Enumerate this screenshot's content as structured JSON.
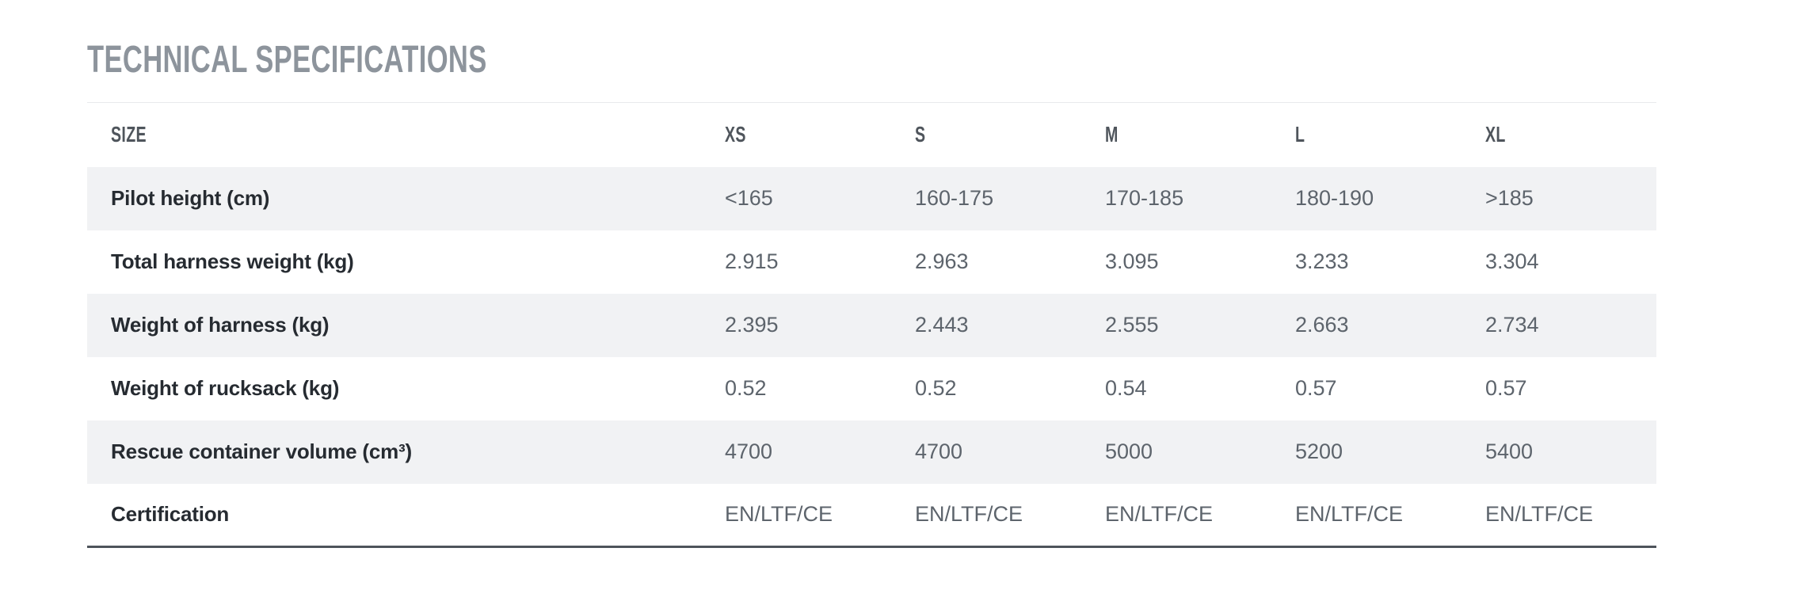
{
  "section": {
    "title": "TECHNICAL SPECIFICATIONS"
  },
  "table": {
    "header": {
      "size_label": "SIZE",
      "columns": [
        "XS",
        "S",
        "M",
        "L",
        "XL"
      ]
    },
    "rows": [
      {
        "label": "Pilot height (cm)",
        "values": [
          "<165",
          "160-175",
          "170-185",
          "180-190",
          ">185"
        ]
      },
      {
        "label": "Total harness weight (kg)",
        "values": [
          "2.915",
          "2.963",
          "3.095",
          "3.233",
          "3.304"
        ]
      },
      {
        "label": "Weight of harness (kg)",
        "values": [
          "2.395",
          "2.443",
          "2.555",
          "2.663",
          "2.734"
        ]
      },
      {
        "label": "Weight of rucksack (kg)",
        "values": [
          "0.52",
          "0.52",
          "0.54",
          "0.57",
          "0.57"
        ]
      },
      {
        "label": "Rescue container volume (cm³)",
        "values": [
          "4700",
          "4700",
          "5000",
          "5200",
          "5400"
        ]
      },
      {
        "label": "Certification",
        "values": [
          "EN/LTF/CE",
          "EN/LTF/CE",
          "EN/LTF/CE",
          "EN/LTF/CE",
          "EN/LTF/CE"
        ]
      }
    ],
    "colors": {
      "title_text": "#8d949c",
      "header_text": "#4f555c",
      "label_text": "#262b31",
      "value_text": "#5d646c",
      "zebra_row_bg": "#f1f2f4",
      "top_border": "#e8eaec",
      "bottom_border": "#4e545b"
    }
  }
}
